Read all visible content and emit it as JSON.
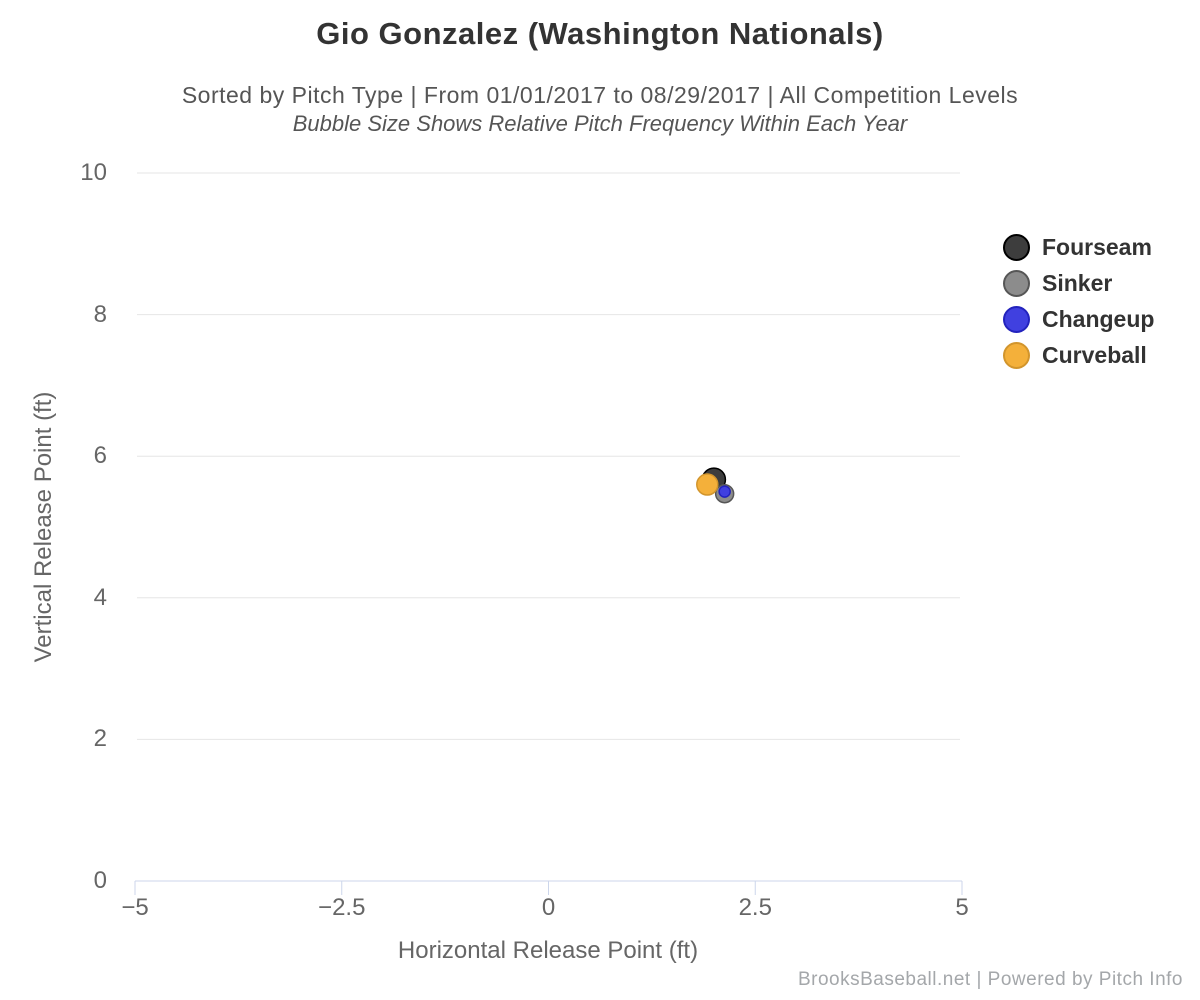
{
  "header": {
    "title": "Gio Gonzalez (Washington Nationals)",
    "subtitle": "Sorted by Pitch Type | From 01/01/2017 to 08/29/2017 | All Competition Levels",
    "subtitle2": "Bubble Size Shows Relative Pitch Frequency Within Each Year"
  },
  "footer": {
    "credit": "BrooksBaseball.net | Powered by Pitch Info"
  },
  "chart_data": {
    "type": "scatter",
    "subtype": "bubble",
    "title": "Gio Gonzalez (Washington Nationals)",
    "subtitle": "Sorted by Pitch Type | From 01/01/2017 to 08/29/2017 | All Competition Levels",
    "annotation": "Bubble Size Shows Relative Pitch Frequency Within Each Year",
    "xlabel": "Horizontal Release Point (ft)",
    "ylabel": "Vertical Release Point (ft)",
    "xlim": [
      -5,
      5
    ],
    "ylim": [
      0,
      10
    ],
    "x_ticks": [
      -5,
      -2.5,
      0,
      2.5,
      5
    ],
    "x_tick_labels": [
      "−5",
      "−2.5",
      "0",
      "2.5",
      "5"
    ],
    "y_ticks": [
      0,
      2,
      4,
      6,
      8,
      10
    ],
    "y_tick_labels": [
      "0",
      "2",
      "4",
      "6",
      "8",
      "10"
    ],
    "grid": "horizontal",
    "legend_position": "right",
    "series": [
      {
        "name": "Fourseam",
        "fill": "#3d3d3d",
        "border": "#000000",
        "points": [
          {
            "x": 2.0,
            "y": 5.67,
            "r": 11.5
          }
        ]
      },
      {
        "name": "Sinker",
        "fill": "#8c8c8c",
        "border": "#565656",
        "points": [
          {
            "x": 2.13,
            "y": 5.47,
            "r": 9
          }
        ]
      },
      {
        "name": "Changeup",
        "fill": "#4040e0",
        "border": "#2323bd",
        "points": [
          {
            "x": 2.13,
            "y": 5.5,
            "r": 5.5
          }
        ]
      },
      {
        "name": "Curveball",
        "fill": "#f4b03a",
        "border": "#d2952c",
        "points": [
          {
            "x": 1.92,
            "y": 5.6,
            "r": 10.5
          }
        ]
      }
    ],
    "styles": {
      "grid_color": "#e6e6e6",
      "axis_line_color": "#ccd6eb",
      "tick_color": "#ccd6eb",
      "title_color": "#333333",
      "subtitle_color": "#555555",
      "axis_text_color": "#666666",
      "credit_color": "#a4a7aa"
    }
  }
}
